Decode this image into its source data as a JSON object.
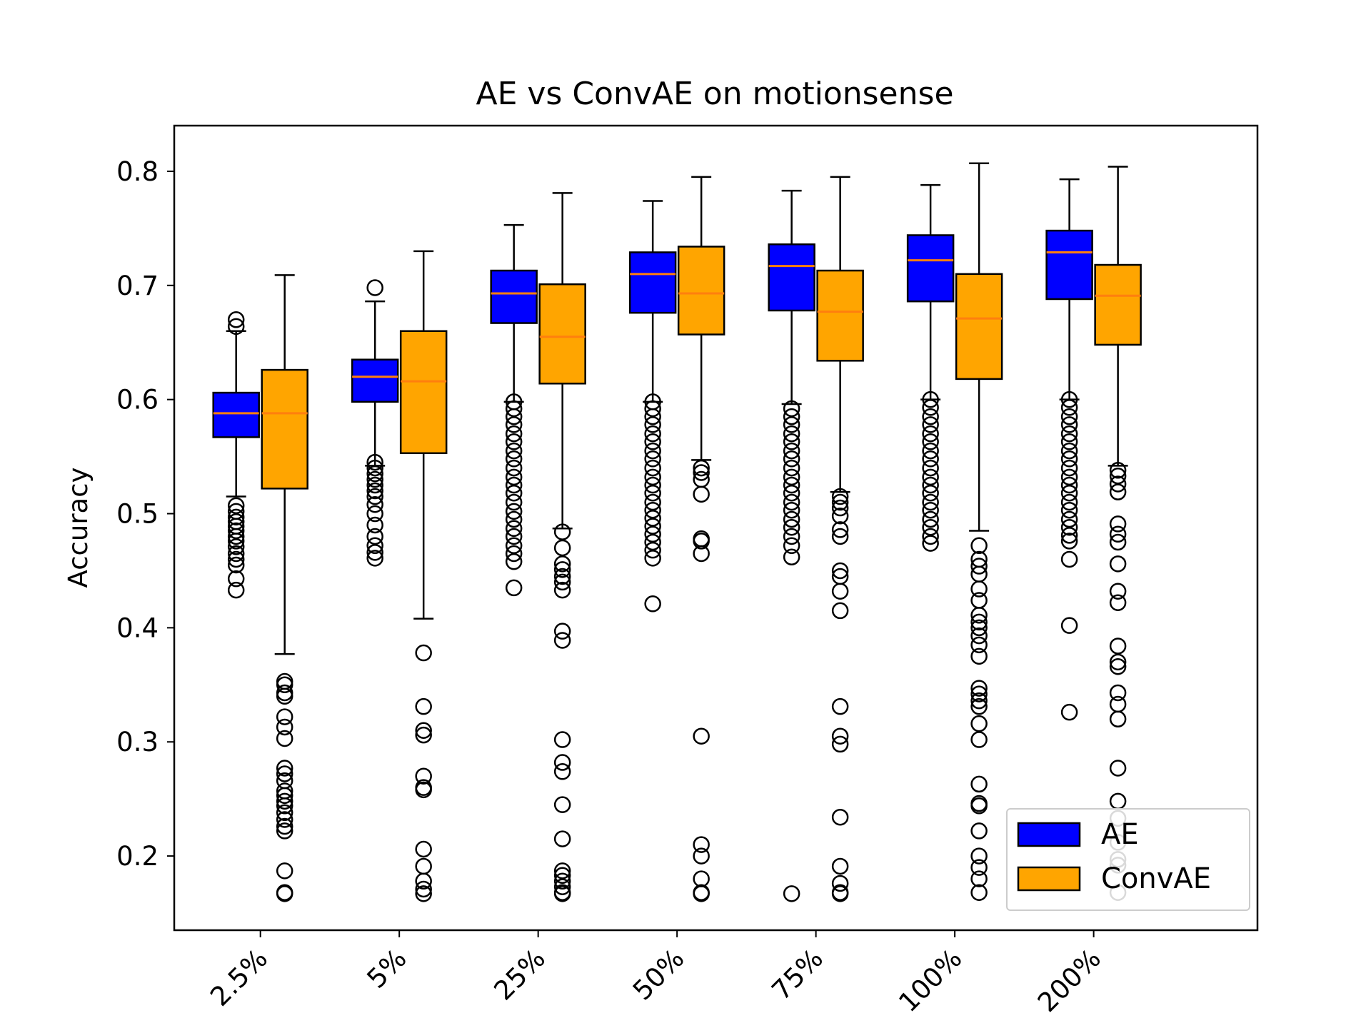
{
  "chart_data": {
    "type": "boxplot",
    "title": "AE vs ConvAE on motionsense",
    "xlabel": "",
    "ylabel": "Accuracy",
    "ylim": [
      0.135,
      0.84
    ],
    "yticks": [
      "0.2",
      "0.3",
      "0.4",
      "0.5",
      "0.6",
      "0.7",
      "0.8"
    ],
    "categories": [
      "2.5%",
      "5%",
      "25%",
      "50%",
      "75%",
      "100%",
      "200%"
    ],
    "legend_position": "lower-right",
    "grid": false,
    "colors": {
      "AE": "#0000ff",
      "ConvAE": "#ffa500",
      "median": "#ff7f0e",
      "stroke": "#000000"
    },
    "series": [
      {
        "name": "AE",
        "boxes": [
          {
            "whislo": 0.515,
            "q1": 0.567,
            "med": 0.588,
            "q3": 0.606,
            "whishi": 0.66,
            "fliers": [
              0.67,
              0.664,
              0.507,
              0.502,
              0.497,
              0.493,
              0.489,
              0.485,
              0.48,
              0.476,
              0.471,
              0.465,
              0.46,
              0.455,
              0.443,
              0.433
            ]
          },
          {
            "whislo": 0.542,
            "q1": 0.598,
            "med": 0.62,
            "q3": 0.635,
            "whishi": 0.686,
            "fliers": [
              0.698,
              0.545,
              0.54,
              0.535,
              0.53,
              0.525,
              0.52,
              0.515,
              0.508,
              0.5,
              0.49,
              0.48,
              0.472,
              0.466,
              0.461
            ]
          },
          {
            "whislo": 0.598,
            "q1": 0.667,
            "med": 0.693,
            "q3": 0.713,
            "whishi": 0.753,
            "fliers": [
              0.598,
              0.592,
              0.585,
              0.578,
              0.57,
              0.563,
              0.555,
              0.548,
              0.54,
              0.532,
              0.525,
              0.518,
              0.51,
              0.502,
              0.495,
              0.487,
              0.48,
              0.472,
              0.465,
              0.458,
              0.435
            ]
          },
          {
            "whislo": 0.598,
            "q1": 0.676,
            "med": 0.71,
            "q3": 0.729,
            "whishi": 0.774,
            "fliers": [
              0.598,
              0.592,
              0.585,
              0.578,
              0.57,
              0.563,
              0.555,
              0.548,
              0.54,
              0.532,
              0.525,
              0.518,
              0.51,
              0.503,
              0.496,
              0.489,
              0.482,
              0.475,
              0.468,
              0.461,
              0.421
            ]
          },
          {
            "whislo": 0.596,
            "q1": 0.678,
            "med": 0.717,
            "q3": 0.736,
            "whishi": 0.783,
            "fliers": [
              0.592,
              0.585,
              0.578,
              0.57,
              0.563,
              0.555,
              0.548,
              0.54,
              0.532,
              0.525,
              0.518,
              0.51,
              0.503,
              0.495,
              0.488,
              0.48,
              0.472,
              0.462,
              0.167
            ]
          },
          {
            "whislo": 0.6,
            "q1": 0.686,
            "med": 0.722,
            "q3": 0.744,
            "whishi": 0.788,
            "fliers": [
              0.6,
              0.593,
              0.585,
              0.578,
              0.57,
              0.563,
              0.555,
              0.548,
              0.54,
              0.532,
              0.525,
              0.518,
              0.51,
              0.503,
              0.495,
              0.488,
              0.48,
              0.474
            ]
          },
          {
            "whislo": 0.6,
            "q1": 0.688,
            "med": 0.729,
            "q3": 0.748,
            "whishi": 0.793,
            "fliers": [
              0.6,
              0.593,
              0.585,
              0.578,
              0.57,
              0.563,
              0.555,
              0.548,
              0.54,
              0.532,
              0.525,
              0.518,
              0.51,
              0.503,
              0.495,
              0.488,
              0.481,
              0.476,
              0.46,
              0.402,
              0.326
            ]
          }
        ]
      },
      {
        "name": "ConvAE",
        "boxes": [
          {
            "whislo": 0.377,
            "q1": 0.522,
            "med": 0.588,
            "q3": 0.626,
            "whishi": 0.709,
            "fliers": [
              0.353,
              0.35,
              0.343,
              0.34,
              0.322,
              0.313,
              0.303,
              0.277,
              0.272,
              0.266,
              0.257,
              0.253,
              0.248,
              0.244,
              0.238,
              0.232,
              0.226,
              0.222,
              0.187,
              0.168,
              0.167
            ]
          },
          {
            "whislo": 0.408,
            "q1": 0.553,
            "med": 0.616,
            "q3": 0.66,
            "whishi": 0.73,
            "fliers": [
              0.378,
              0.331,
              0.31,
              0.306,
              0.27,
              0.26,
              0.258,
              0.206,
              0.191,
              0.178,
              0.171,
              0.167
            ]
          },
          {
            "whislo": 0.487,
            "q1": 0.614,
            "med": 0.655,
            "q3": 0.701,
            "whishi": 0.781,
            "fliers": [
              0.484,
              0.47,
              0.456,
              0.451,
              0.445,
              0.44,
              0.433,
              0.397,
              0.389,
              0.302,
              0.282,
              0.274,
              0.245,
              0.215,
              0.187,
              0.183,
              0.178,
              0.173,
              0.168,
              0.167
            ]
          },
          {
            "whislo": 0.547,
            "q1": 0.657,
            "med": 0.693,
            "q3": 0.734,
            "whishi": 0.795,
            "fliers": [
              0.54,
              0.536,
              0.53,
              0.517,
              0.478,
              0.476,
              0.465,
              0.305,
              0.21,
              0.2,
              0.18,
              0.168,
              0.167
            ]
          },
          {
            "whislo": 0.519,
            "q1": 0.634,
            "med": 0.677,
            "q3": 0.713,
            "whishi": 0.795,
            "fliers": [
              0.515,
              0.51,
              0.505,
              0.498,
              0.486,
              0.48,
              0.45,
              0.445,
              0.432,
              0.415,
              0.331,
              0.305,
              0.298,
              0.234,
              0.191,
              0.176,
              0.168,
              0.167
            ]
          },
          {
            "whislo": 0.485,
            "q1": 0.618,
            "med": 0.671,
            "q3": 0.71,
            "whishi": 0.807,
            "fliers": [
              0.472,
              0.46,
              0.454,
              0.447,
              0.434,
              0.424,
              0.411,
              0.405,
              0.4,
              0.393,
              0.385,
              0.375,
              0.347,
              0.342,
              0.336,
              0.331,
              0.316,
              0.302,
              0.263,
              0.246,
              0.244,
              0.222,
              0.2,
              0.19,
              0.18,
              0.168
            ]
          },
          {
            "whislo": 0.542,
            "q1": 0.648,
            "med": 0.691,
            "q3": 0.718,
            "whishi": 0.804,
            "fliers": [
              0.538,
              0.533,
              0.526,
              0.519,
              0.491,
              0.482,
              0.475,
              0.456,
              0.432,
              0.422,
              0.384,
              0.37,
              0.366,
              0.343,
              0.333,
              0.32,
              0.277,
              0.248,
              0.233,
              0.212,
              0.197,
              0.192,
              0.168
            ]
          }
        ]
      }
    ]
  }
}
